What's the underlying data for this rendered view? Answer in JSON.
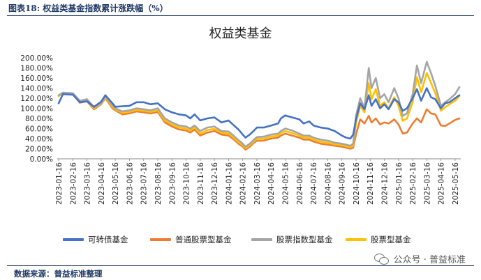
{
  "header": {
    "title": "图表18:  权益类基金指数累计涨跌幅（%）"
  },
  "footer": {
    "source": "数据来源：普益标准整理"
  },
  "watermark": {
    "text": "公众号 · 普益标准",
    "icon": "wechat-icon"
  },
  "chart_data": {
    "type": "line",
    "title": "权益类基金",
    "ylim": [
      0,
      200
    ],
    "yticks": [
      0,
      20,
      40,
      60,
      80,
      100,
      120,
      140,
      160,
      180,
      200
    ],
    "ytick_labels": [
      "0.00%",
      "20.00%",
      "40.00%",
      "60.00%",
      "80.00%",
      "100.00%",
      "120.00%",
      "140.00%",
      "160.00%",
      "180.00%",
      "200.00%"
    ],
    "categories": [
      "2023-01-16",
      "2023-02-16",
      "2023-03-16",
      "2023-04-16",
      "2023-05-16",
      "2023-06-16",
      "2023-07-16",
      "2023-08-16",
      "2023-09-16",
      "2023-10-16",
      "2023-11-16",
      "2023-12-16",
      "2024-01-16",
      "2024-02-16",
      "2024-03-16",
      "2024-04-16",
      "2024-05-16",
      "2024-06-16",
      "2024-07-16",
      "2024-08-16",
      "2024-09-16",
      "2024-10-16",
      "2024-11-16",
      "2024-12-16",
      "2025-01-16",
      "2025-02-16",
      "2025-03-16",
      "2025-04-16",
      "2025-05-16"
    ],
    "series": [
      {
        "name": "可转债基金",
        "color": "#4472c4",
        "values": [
          [
            0,
            110
          ],
          [
            0.3,
            128
          ],
          [
            1,
            127
          ],
          [
            1.5,
            112
          ],
          [
            2,
            114
          ],
          [
            2.5,
            103
          ],
          [
            3,
            113
          ],
          [
            3.3,
            126
          ],
          [
            3.8,
            110
          ],
          [
            4,
            103
          ],
          [
            4.5,
            104
          ],
          [
            5,
            105
          ],
          [
            5.5,
            112
          ],
          [
            6,
            112
          ],
          [
            6.5,
            108
          ],
          [
            7,
            110
          ],
          [
            7.5,
            98
          ],
          [
            8,
            92
          ],
          [
            8.5,
            88
          ],
          [
            9,
            86
          ],
          [
            9.3,
            80
          ],
          [
            9.6,
            88
          ],
          [
            10,
            76
          ],
          [
            10.5,
            80
          ],
          [
            11,
            82
          ],
          [
            11.5,
            72
          ],
          [
            12,
            76
          ],
          [
            12.3,
            68
          ],
          [
            12.7,
            58
          ],
          [
            13,
            48
          ],
          [
            13.2,
            42
          ],
          [
            13.5,
            48
          ],
          [
            13.8,
            56
          ],
          [
            14,
            62
          ],
          [
            14.5,
            62
          ],
          [
            15,
            66
          ],
          [
            15.5,
            70
          ],
          [
            15.7,
            80
          ],
          [
            16,
            86
          ],
          [
            16.5,
            82
          ],
          [
            17,
            78
          ],
          [
            17.3,
            70
          ],
          [
            17.7,
            74
          ],
          [
            18,
            66
          ],
          [
            18.5,
            62
          ],
          [
            19,
            60
          ],
          [
            19.5,
            55
          ],
          [
            20,
            46
          ],
          [
            20.3,
            42
          ],
          [
            20.6,
            40
          ],
          [
            20.8,
            48
          ],
          [
            21,
            78
          ],
          [
            21.3,
            110
          ],
          [
            21.6,
            98
          ],
          [
            21.9,
            126
          ],
          [
            22.1,
            105
          ],
          [
            22.4,
            118
          ],
          [
            22.7,
            100
          ],
          [
            23,
            108
          ],
          [
            23.3,
            98
          ],
          [
            23.7,
            118
          ],
          [
            24,
            112
          ],
          [
            24.3,
            95
          ],
          [
            24.6,
            100
          ],
          [
            25,
            120
          ],
          [
            25.3,
            138
          ],
          [
            25.6,
            115
          ],
          [
            26,
            140
          ],
          [
            26.3,
            122
          ],
          [
            26.6,
            118
          ],
          [
            27,
            100
          ],
          [
            27.3,
            110
          ],
          [
            27.6,
            112
          ],
          [
            28,
            120
          ],
          [
            28.3,
            126
          ]
        ]
      },
      {
        "name": "普通股票型基金",
        "color": "#ed7d31",
        "values": [
          [
            0,
            125
          ],
          [
            0.3,
            130
          ],
          [
            1,
            128
          ],
          [
            1.5,
            111
          ],
          [
            2,
            114
          ],
          [
            2.5,
            98
          ],
          [
            3,
            108
          ],
          [
            3.3,
            120
          ],
          [
            3.8,
            100
          ],
          [
            4,
            96
          ],
          [
            4.5,
            88
          ],
          [
            5,
            90
          ],
          [
            5.5,
            94
          ],
          [
            6,
            92
          ],
          [
            6.5,
            90
          ],
          [
            7,
            93
          ],
          [
            7.5,
            72
          ],
          [
            8,
            64
          ],
          [
            8.5,
            58
          ],
          [
            9,
            56
          ],
          [
            9.3,
            52
          ],
          [
            9.6,
            58
          ],
          [
            10,
            46
          ],
          [
            10.5,
            52
          ],
          [
            11,
            55
          ],
          [
            11.5,
            48
          ],
          [
            12,
            46
          ],
          [
            12.3,
            40
          ],
          [
            12.7,
            30
          ],
          [
            13,
            24
          ],
          [
            13.2,
            18
          ],
          [
            13.5,
            24
          ],
          [
            13.8,
            32
          ],
          [
            14,
            36
          ],
          [
            14.5,
            36
          ],
          [
            15,
            40
          ],
          [
            15.5,
            42
          ],
          [
            15.7,
            46
          ],
          [
            16,
            50
          ],
          [
            16.5,
            46
          ],
          [
            17,
            42
          ],
          [
            17.3,
            38
          ],
          [
            17.7,
            38
          ],
          [
            18,
            34
          ],
          [
            18.5,
            30
          ],
          [
            19,
            28
          ],
          [
            19.5,
            26
          ],
          [
            20,
            24
          ],
          [
            20.3,
            22
          ],
          [
            20.6,
            20
          ],
          [
            20.8,
            22
          ],
          [
            21,
            48
          ],
          [
            21.3,
            78
          ],
          [
            21.6,
            70
          ],
          [
            21.9,
            85
          ],
          [
            22.1,
            72
          ],
          [
            22.4,
            80
          ],
          [
            22.7,
            68
          ],
          [
            23,
            72
          ],
          [
            23.3,
            70
          ],
          [
            23.7,
            78
          ],
          [
            24,
            68
          ],
          [
            24.3,
            50
          ],
          [
            24.6,
            52
          ],
          [
            25,
            70
          ],
          [
            25.3,
            80
          ],
          [
            25.6,
            72
          ],
          [
            26,
            98
          ],
          [
            26.3,
            90
          ],
          [
            26.6,
            88
          ],
          [
            27,
            66
          ],
          [
            27.3,
            65
          ],
          [
            27.6,
            70
          ],
          [
            28,
            77
          ],
          [
            28.3,
            80
          ]
        ]
      },
      {
        "name": "股票指数型基金",
        "color": "#a5a5a5",
        "values": [
          [
            0,
            126
          ],
          [
            0.3,
            131
          ],
          [
            1,
            130
          ],
          [
            1.5,
            115
          ],
          [
            2,
            118
          ],
          [
            2.5,
            102
          ],
          [
            3,
            110
          ],
          [
            3.3,
            124
          ],
          [
            3.8,
            106
          ],
          [
            4,
            100
          ],
          [
            4.5,
            94
          ],
          [
            5,
            96
          ],
          [
            5.5,
            100
          ],
          [
            6,
            98
          ],
          [
            6.5,
            96
          ],
          [
            7,
            100
          ],
          [
            7.5,
            80
          ],
          [
            8,
            72
          ],
          [
            8.5,
            66
          ],
          [
            9,
            64
          ],
          [
            9.3,
            60
          ],
          [
            9.6,
            66
          ],
          [
            10,
            55
          ],
          [
            10.5,
            62
          ],
          [
            11,
            64
          ],
          [
            11.5,
            55
          ],
          [
            12,
            54
          ],
          [
            12.3,
            47
          ],
          [
            12.7,
            37
          ],
          [
            13,
            30
          ],
          [
            13.2,
            24
          ],
          [
            13.5,
            30
          ],
          [
            13.8,
            38
          ],
          [
            14,
            43
          ],
          [
            14.5,
            44
          ],
          [
            15,
            48
          ],
          [
            15.5,
            50
          ],
          [
            15.7,
            55
          ],
          [
            16,
            60
          ],
          [
            16.5,
            56
          ],
          [
            17,
            50
          ],
          [
            17.3,
            46
          ],
          [
            17.7,
            46
          ],
          [
            18,
            42
          ],
          [
            18.5,
            38
          ],
          [
            19,
            36
          ],
          [
            19.5,
            32
          ],
          [
            20,
            30
          ],
          [
            20.3,
            28
          ],
          [
            20.6,
            26
          ],
          [
            20.8,
            30
          ],
          [
            21,
            85
          ],
          [
            21.3,
            120
          ],
          [
            21.6,
            100
          ],
          [
            21.9,
            180
          ],
          [
            22.1,
            140
          ],
          [
            22.4,
            160
          ],
          [
            22.7,
            120
          ],
          [
            23,
            128
          ],
          [
            23.3,
            112
          ],
          [
            23.7,
            140
          ],
          [
            24,
            120
          ],
          [
            24.3,
            85
          ],
          [
            24.6,
            90
          ],
          [
            25,
            128
          ],
          [
            25.3,
            185
          ],
          [
            25.6,
            150
          ],
          [
            26,
            192
          ],
          [
            26.3,
            170
          ],
          [
            26.6,
            145
          ],
          [
            27,
            105
          ],
          [
            27.3,
            112
          ],
          [
            27.6,
            118
          ],
          [
            28,
            128
          ],
          [
            28.3,
            142
          ]
        ]
      },
      {
        "name": "股票型基金",
        "color": "#ffc000",
        "values": [
          [
            0,
            124
          ],
          [
            0.3,
            130
          ],
          [
            1,
            129
          ],
          [
            1.5,
            113
          ],
          [
            2,
            116
          ],
          [
            2.5,
            100
          ],
          [
            3,
            109
          ],
          [
            3.3,
            122
          ],
          [
            3.8,
            103
          ],
          [
            4,
            98
          ],
          [
            4.5,
            91
          ],
          [
            5,
            93
          ],
          [
            5.5,
            97
          ],
          [
            6,
            95
          ],
          [
            6.5,
            93
          ],
          [
            7,
            96
          ],
          [
            7.5,
            76
          ],
          [
            8,
            68
          ],
          [
            8.5,
            62
          ],
          [
            9,
            60
          ],
          [
            9.3,
            56
          ],
          [
            9.6,
            62
          ],
          [
            10,
            50
          ],
          [
            10.5,
            57
          ],
          [
            11,
            59
          ],
          [
            11.5,
            52
          ],
          [
            12,
            50
          ],
          [
            12.3,
            43
          ],
          [
            12.7,
            33
          ],
          [
            13,
            27
          ],
          [
            13.2,
            21
          ],
          [
            13.5,
            27
          ],
          [
            13.8,
            35
          ],
          [
            14,
            40
          ],
          [
            14.5,
            40
          ],
          [
            15,
            44
          ],
          [
            15.5,
            46
          ],
          [
            15.7,
            51
          ],
          [
            16,
            55
          ],
          [
            16.5,
            51
          ],
          [
            17,
            46
          ],
          [
            17.3,
            42
          ],
          [
            17.7,
            42
          ],
          [
            18,
            38
          ],
          [
            18.5,
            34
          ],
          [
            19,
            32
          ],
          [
            19.5,
            29
          ],
          [
            20,
            27
          ],
          [
            20.3,
            25
          ],
          [
            20.6,
            23
          ],
          [
            20.8,
            26
          ],
          [
            21,
            70
          ],
          [
            21.3,
            105
          ],
          [
            21.6,
            92
          ],
          [
            21.9,
            150
          ],
          [
            22.1,
            118
          ],
          [
            22.4,
            138
          ],
          [
            22.7,
            105
          ],
          [
            23,
            112
          ],
          [
            23.3,
            100
          ],
          [
            23.7,
            122
          ],
          [
            24,
            105
          ],
          [
            24.3,
            75
          ],
          [
            24.6,
            80
          ],
          [
            25,
            112
          ],
          [
            25.3,
            162
          ],
          [
            25.6,
            132
          ],
          [
            26,
            170
          ],
          [
            26.3,
            150
          ],
          [
            26.6,
            130
          ],
          [
            27,
            95
          ],
          [
            27.3,
            102
          ],
          [
            27.6,
            108
          ],
          [
            28,
            115
          ],
          [
            28.3,
            124
          ]
        ]
      }
    ]
  }
}
